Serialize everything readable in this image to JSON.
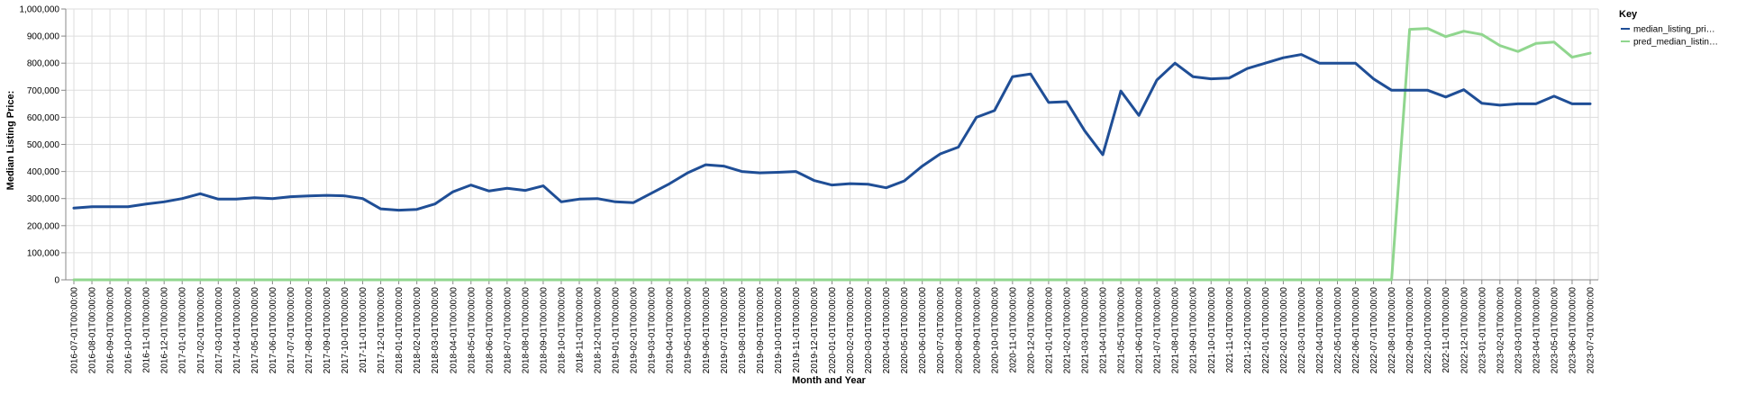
{
  "chart_data": {
    "type": "line",
    "title": "",
    "xlabel": "Month and Year",
    "ylabel": "Median Listing Price:",
    "ylim": [
      0,
      1000000
    ],
    "y_ticks": [
      0,
      100000,
      200000,
      300000,
      400000,
      500000,
      600000,
      700000,
      800000,
      900000,
      1000000
    ],
    "y_tick_labels": [
      "0",
      "100,000",
      "200,000",
      "300,000",
      "400,000",
      "500,000",
      "600,000",
      "700,000",
      "800,000",
      "900,000",
      "1,000,000"
    ],
    "grid": true,
    "legend": {
      "title": "Key",
      "position": "right",
      "labels": [
        "median_listing_pri…",
        "pred_median_listin…"
      ]
    },
    "x": [
      "2016-07-01T00:00:00",
      "2016-08-01T00:00:00",
      "2016-09-01T00:00:00",
      "2016-10-01T00:00:00",
      "2016-11-01T00:00:00",
      "2016-12-01T00:00:00",
      "2017-01-01T00:00:00",
      "2017-02-01T00:00:00",
      "2017-03-01T00:00:00",
      "2017-04-01T00:00:00",
      "2017-05-01T00:00:00",
      "2017-06-01T00:00:00",
      "2017-07-01T00:00:00",
      "2017-08-01T00:00:00",
      "2017-09-01T00:00:00",
      "2017-10-01T00:00:00",
      "2017-11-01T00:00:00",
      "2017-12-01T00:00:00",
      "2018-01-01T00:00:00",
      "2018-02-01T00:00:00",
      "2018-03-01T00:00:00",
      "2018-04-01T00:00:00",
      "2018-05-01T00:00:00",
      "2018-06-01T00:00:00",
      "2018-07-01T00:00:00",
      "2018-08-01T00:00:00",
      "2018-09-01T00:00:00",
      "2018-10-01T00:00:00",
      "2018-11-01T00:00:00",
      "2018-12-01T00:00:00",
      "2019-01-01T00:00:00",
      "2019-02-01T00:00:00",
      "2019-03-01T00:00:00",
      "2019-04-01T00:00:00",
      "2019-05-01T00:00:00",
      "2019-06-01T00:00:00",
      "2019-07-01T00:00:00",
      "2019-08-01T00:00:00",
      "2019-09-01T00:00:00",
      "2019-10-01T00:00:00",
      "2019-11-01T00:00:00",
      "2019-12-01T00:00:00",
      "2020-01-01T00:00:00",
      "2020-02-01T00:00:00",
      "2020-03-01T00:00:00",
      "2020-04-01T00:00:00",
      "2020-05-01T00:00:00",
      "2020-06-01T00:00:00",
      "2020-07-01T00:00:00",
      "2020-08-01T00:00:00",
      "2020-09-01T00:00:00",
      "2020-10-01T00:00:00",
      "2020-11-01T00:00:00",
      "2020-12-01T00:00:00",
      "2021-01-01T00:00:00",
      "2021-02-01T00:00:00",
      "2021-03-01T00:00:00",
      "2021-04-01T00:00:00",
      "2021-05-01T00:00:00",
      "2021-06-01T00:00:00",
      "2021-07-01T00:00:00",
      "2021-08-01T00:00:00",
      "2021-09-01T00:00:00",
      "2021-10-01T00:00:00",
      "2021-11-01T00:00:00",
      "2021-12-01T00:00:00",
      "2022-01-01T00:00:00",
      "2022-02-01T00:00:00",
      "2022-03-01T00:00:00",
      "2022-04-01T00:00:00",
      "2022-05-01T00:00:00",
      "2022-06-01T00:00:00",
      "2022-07-01T00:00:00",
      "2022-08-01T00:00:00",
      "2022-09-01T00:00:00",
      "2022-10-01T00:00:00",
      "2022-11-01T00:00:00",
      "2022-12-01T00:00:00",
      "2023-01-01T00:00:00",
      "2023-02-01T00:00:00",
      "2023-03-01T00:00:00",
      "2023-04-01T00:00:00",
      "2023-05-01T00:00:00",
      "2023-06-01T00:00:00",
      "2023-07-01T00:00:00"
    ],
    "series": [
      {
        "name": "median_listing_pri…",
        "color": "#1f4e96",
        "values": [
          265000,
          270000,
          270000,
          270000,
          280000,
          288000,
          300000,
          318000,
          298000,
          298000,
          303000,
          300000,
          307000,
          310000,
          312000,
          310000,
          300000,
          262000,
          257000,
          260000,
          280000,
          325000,
          350000,
          328000,
          338000,
          330000,
          347000,
          288000,
          298000,
          300000,
          288000,
          285000,
          320000,
          355000,
          395000,
          425000,
          420000,
          400000,
          395000,
          397000,
          400000,
          367000,
          350000,
          355000,
          353000,
          340000,
          365000,
          420000,
          465000,
          490000,
          600000,
          625000,
          750000,
          760000,
          655000,
          658000,
          550000,
          462000,
          697000,
          607000,
          738000,
          800000,
          750000,
          742000,
          745000,
          780000,
          800000,
          820000,
          832000,
          800000,
          800000,
          800000,
          742000,
          700000,
          700000,
          700000,
          675000,
          702000,
          652000,
          645000,
          650000,
          650000,
          678000,
          650000,
          650000
        ]
      },
      {
        "name": "pred_median_listin…",
        "color": "#90d68e",
        "values": [
          0,
          0,
          0,
          0,
          0,
          0,
          0,
          0,
          0,
          0,
          0,
          0,
          0,
          0,
          0,
          0,
          0,
          0,
          0,
          0,
          0,
          0,
          0,
          0,
          0,
          0,
          0,
          0,
          0,
          0,
          0,
          0,
          0,
          0,
          0,
          0,
          0,
          0,
          0,
          0,
          0,
          0,
          0,
          0,
          0,
          0,
          0,
          0,
          0,
          0,
          0,
          0,
          0,
          0,
          0,
          0,
          0,
          0,
          0,
          0,
          0,
          0,
          0,
          0,
          0,
          0,
          0,
          0,
          0,
          0,
          0,
          0,
          0,
          0,
          925000,
          928000,
          898000,
          918000,
          906000,
          865000,
          843000,
          873000,
          878000,
          822000,
          837000
        ]
      }
    ]
  }
}
